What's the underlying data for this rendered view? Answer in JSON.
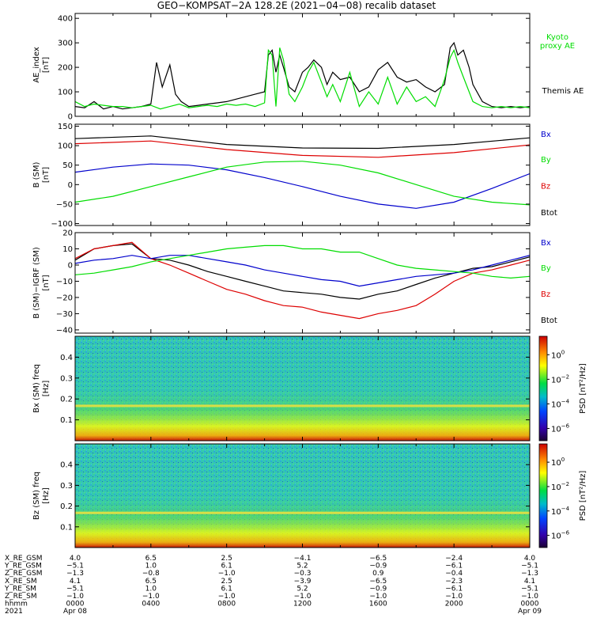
{
  "title": "GEO−KOMPSAT−2A 128.2E (2021−04−08) recalib dataset",
  "colors": {
    "black": "#000000",
    "green": "#00dd00",
    "red": "#dd0000",
    "blue": "#0000cc"
  },
  "chart_data": [
    {
      "type": "line",
      "panel": "ae",
      "ylabel": "AE_index [nT]",
      "ylim": [
        0,
        420
      ],
      "yticks": [
        "0",
        "100",
        "200",
        "300",
        "400"
      ],
      "yticks_values": [
        0,
        100,
        200,
        300,
        400
      ],
      "x_hours": [
        0,
        24
      ],
      "legend": [
        {
          "name": "Kyoto proxy AE",
          "color": "#00dd00",
          "lines": [
            "Kyoto",
            "proxy AE"
          ]
        },
        {
          "name": "Themis AE",
          "color": "#000000",
          "lines": [
            "Themis AE"
          ]
        }
      ],
      "series": [
        {
          "name": "Themis AE",
          "color": "#000000",
          "x": [
            0,
            0.5,
            1,
            1.5,
            2,
            2.5,
            3,
            3.5,
            4,
            4.3,
            4.6,
            5,
            5.3,
            5.6,
            6,
            6.5,
            7,
            7.5,
            8,
            8.5,
            9,
            9.5,
            10,
            10.2,
            10.4,
            10.6,
            10.8,
            11,
            11.3,
            11.6,
            12,
            12.3,
            12.6,
            13,
            13.3,
            13.6,
            14,
            14.5,
            15,
            15.5,
            16,
            16.5,
            17,
            17.5,
            18,
            18.5,
            19,
            19.5,
            19.8,
            20,
            20.2,
            20.5,
            20.8,
            21,
            21.5,
            22,
            22.5,
            23,
            23.5,
            24
          ],
          "y": [
            40,
            35,
            60,
            30,
            40,
            30,
            35,
            40,
            50,
            220,
            120,
            210,
            90,
            60,
            40,
            45,
            50,
            55,
            60,
            70,
            80,
            90,
            100,
            250,
            270,
            180,
            250,
            200,
            120,
            100,
            180,
            200,
            230,
            200,
            130,
            180,
            150,
            160,
            100,
            120,
            190,
            220,
            160,
            140,
            150,
            120,
            100,
            130,
            280,
            300,
            250,
            270,
            200,
            130,
            60,
            40,
            35,
            40,
            35,
            40
          ]
        },
        {
          "name": "Kyoto proxy AE",
          "color": "#00dd00",
          "x": [
            0,
            0.5,
            1,
            1.5,
            2,
            2.5,
            3,
            3.5,
            4,
            4.5,
            5,
            5.5,
            6,
            6.5,
            7,
            7.5,
            8,
            8.5,
            9,
            9.5,
            10,
            10.2,
            10.4,
            10.6,
            10.8,
            11,
            11.3,
            11.6,
            12,
            12.3,
            12.6,
            13,
            13.3,
            13.6,
            14,
            14.5,
            15,
            15.5,
            16,
            16.5,
            17,
            17.5,
            18,
            18.5,
            19,
            19.5,
            19.8,
            20,
            20.2,
            20.5,
            20.8,
            21,
            21.5,
            22,
            22.5,
            23,
            23.5,
            24
          ],
          "y": [
            60,
            40,
            50,
            45,
            40,
            40,
            35,
            40,
            45,
            30,
            40,
            50,
            35,
            40,
            45,
            40,
            50,
            45,
            50,
            40,
            55,
            270,
            250,
            40,
            280,
            230,
            90,
            60,
            120,
            180,
            220,
            140,
            80,
            130,
            60,
            180,
            40,
            100,
            50,
            160,
            50,
            120,
            60,
            80,
            40,
            150,
            240,
            270,
            220,
            160,
            100,
            60,
            40,
            35,
            40,
            35,
            40,
            35
          ]
        }
      ]
    },
    {
      "type": "line",
      "panel": "b_sm",
      "ylabel": "B (SM) [nT]",
      "ylim": [
        -105,
        155
      ],
      "yticks": [
        "−100",
        "−50",
        "0",
        "50",
        "100",
        "150"
      ],
      "yticks_values": [
        -100,
        -50,
        0,
        50,
        100,
        150
      ],
      "x_hours": [
        0,
        24
      ],
      "legend": [
        {
          "name": "Bx",
          "color": "#0000cc"
        },
        {
          "name": "By",
          "color": "#00dd00"
        },
        {
          "name": "Bz",
          "color": "#dd0000"
        },
        {
          "name": "Btot",
          "color": "#000000"
        }
      ],
      "series": [
        {
          "name": "Btot",
          "color": "#000000",
          "x": [
            0,
            4,
            8,
            12,
            16,
            20,
            24
          ],
          "y": [
            118,
            125,
            103,
            94,
            93,
            103,
            120
          ]
        },
        {
          "name": "Bz",
          "color": "#dd0000",
          "x": [
            0,
            4,
            8,
            12,
            16,
            20,
            24
          ],
          "y": [
            105,
            112,
            90,
            75,
            70,
            82,
            102
          ]
        },
        {
          "name": "Bx",
          "color": "#0000cc",
          "x": [
            0,
            2,
            4,
            6,
            8,
            10,
            12,
            14,
            16,
            18,
            20,
            22,
            24
          ],
          "y": [
            32,
            45,
            53,
            50,
            38,
            18,
            -5,
            -30,
            -50,
            -61,
            -45,
            -10,
            28
          ]
        },
        {
          "name": "By",
          "color": "#00dd00",
          "x": [
            0,
            2,
            4,
            6,
            8,
            10,
            12,
            14,
            16,
            18,
            20,
            22,
            24
          ],
          "y": [
            -45,
            -30,
            -5,
            20,
            45,
            58,
            60,
            50,
            30,
            0,
            -30,
            -45,
            -52
          ]
        }
      ]
    },
    {
      "type": "line",
      "panel": "db_sm",
      "ylabel": "B (SM)−IGRF (SM) [nT]",
      "ylim": [
        -42,
        20
      ],
      "yticks": [
        "−40",
        "−30",
        "−20",
        "−10",
        "0",
        "10",
        "20"
      ],
      "yticks_values": [
        -40,
        -30,
        -20,
        -10,
        0,
        10,
        20
      ],
      "x_hours": [
        0,
        24
      ],
      "legend": [
        {
          "name": "Bx",
          "color": "#0000cc"
        },
        {
          "name": "By",
          "color": "#00dd00"
        },
        {
          "name": "Bz",
          "color": "#dd0000"
        },
        {
          "name": "Btot",
          "color": "#000000"
        }
      ],
      "series": [
        {
          "name": "Btot",
          "color": "#000000",
          "x": [
            0,
            1,
            2,
            3,
            4,
            5,
            6,
            7,
            8,
            9,
            10,
            11,
            12,
            13,
            14,
            15,
            16,
            17,
            18,
            19,
            20,
            21,
            22,
            23,
            24
          ],
          "y": [
            3,
            10,
            12,
            13,
            4,
            3,
            0,
            -4,
            -7,
            -10,
            -13,
            -16,
            -17,
            -18,
            -20,
            -21,
            -18,
            -16,
            -12,
            -8,
            -5,
            -2,
            -1,
            2,
            5
          ]
        },
        {
          "name": "Bz",
          "color": "#dd0000",
          "x": [
            0,
            1,
            2,
            3,
            4,
            5,
            6,
            7,
            8,
            9,
            10,
            11,
            12,
            13,
            14,
            15,
            16,
            17,
            18,
            19,
            20,
            21,
            22,
            23,
            24
          ],
          "y": [
            4,
            10,
            12,
            14,
            4,
            0,
            -5,
            -10,
            -15,
            -18,
            -22,
            -25,
            -26,
            -29,
            -31,
            -33,
            -30,
            -28,
            -25,
            -18,
            -10,
            -5,
            -3,
            0,
            3
          ]
        },
        {
          "name": "Bx",
          "color": "#0000cc",
          "x": [
            0,
            1,
            2,
            3,
            4,
            5,
            6,
            7,
            8,
            9,
            10,
            11,
            12,
            13,
            14,
            15,
            16,
            17,
            18,
            19,
            20,
            21,
            22,
            23,
            24
          ],
          "y": [
            1,
            3,
            4,
            6,
            4,
            6,
            6,
            4,
            2,
            0,
            -3,
            -5,
            -7,
            -9,
            -10,
            -13,
            -11,
            -9,
            -7,
            -6,
            -5,
            -3,
            0,
            3,
            6
          ]
        },
        {
          "name": "By",
          "color": "#00dd00",
          "x": [
            0,
            1,
            2,
            3,
            4,
            5,
            6,
            7,
            8,
            9,
            10,
            11,
            12,
            13,
            14,
            15,
            16,
            17,
            18,
            19,
            20,
            21,
            22,
            23,
            24
          ],
          "y": [
            -6,
            -5,
            -3,
            -1,
            2,
            4,
            6,
            8,
            10,
            11,
            12,
            12,
            10,
            10,
            8,
            8,
            4,
            0,
            -2,
            -3,
            -4,
            -5,
            -7,
            -8,
            -7
          ]
        }
      ]
    },
    {
      "type": "heatmap",
      "panel": "spec_bx",
      "ylabel": "Bx (SM) freq [Hz]",
      "ylim": [
        0,
        0.5
      ],
      "yticks": [
        "0.1",
        "0.2",
        "0.3",
        "0.4"
      ],
      "yticks_values": [
        0.1,
        0.2,
        0.3,
        0.4
      ],
      "colorbar_label": "PSD [nT²/Hz]",
      "colorbar_exponents": [
        "0",
        "−2",
        "−4",
        "−6"
      ],
      "colorbar_values": [
        0,
        -2,
        -4,
        -6
      ],
      "colorbar_range": [
        -7,
        1.5
      ],
      "line_frequencies": [
        0.167
      ]
    },
    {
      "type": "heatmap",
      "panel": "spec_bz",
      "ylabel": "Bz (SM) freq [Hz]",
      "ylim": [
        0,
        0.5
      ],
      "yticks": [
        "0.1",
        "0.2",
        "0.3",
        "0.4"
      ],
      "yticks_values": [
        0.1,
        0.2,
        0.3,
        0.4
      ],
      "colorbar_label": "PSD [nT²/Hz]",
      "colorbar_exponents": [
        "0",
        "−2",
        "−4",
        "−6"
      ],
      "colorbar_values": [
        0,
        -2,
        -4,
        -6
      ],
      "colorbar_range": [
        -7,
        1.5
      ],
      "line_frequencies": [
        0.167
      ]
    }
  ],
  "orbit_table": {
    "row_labels": [
      "X_RE_GSM",
      "Y_RE_GSM",
      "Z_RE_GSM",
      "X_RE_SM",
      "Y_RE_SM",
      "Z_RE_SM",
      "hhmm",
      "2021"
    ],
    "tick_hours": [
      0,
      4,
      8,
      12,
      16,
      20,
      24
    ],
    "columns": [
      [
        "4.0",
        "−5.1",
        "−1.3",
        "4.1",
        "−5.1",
        "−1.0",
        "0000",
        "Apr 08"
      ],
      [
        "6.5",
        "1.0",
        "−0.8",
        "6.5",
        "1.0",
        "−1.0",
        "0400",
        ""
      ],
      [
        "2.5",
        "6.1",
        "−1.0",
        "2.5",
        "6.1",
        "−1.0",
        "0800",
        ""
      ],
      [
        "−4.1",
        "5.2",
        "−0.3",
        "−3.9",
        "5.2",
        "−1.0",
        "1200",
        ""
      ],
      [
        "−6.5",
        "−0.9",
        "0.9",
        "−6.5",
        "−0.9",
        "−1.0",
        "1600",
        ""
      ],
      [
        "−2.4",
        "−6.1",
        "−0.4",
        "−2.3",
        "−6.1",
        "−1.0",
        "2000",
        ""
      ],
      [
        "4.0",
        "−5.1",
        "−1.3",
        "4.1",
        "−5.1",
        "−1.0",
        "0000",
        "Apr 09"
      ]
    ]
  }
}
